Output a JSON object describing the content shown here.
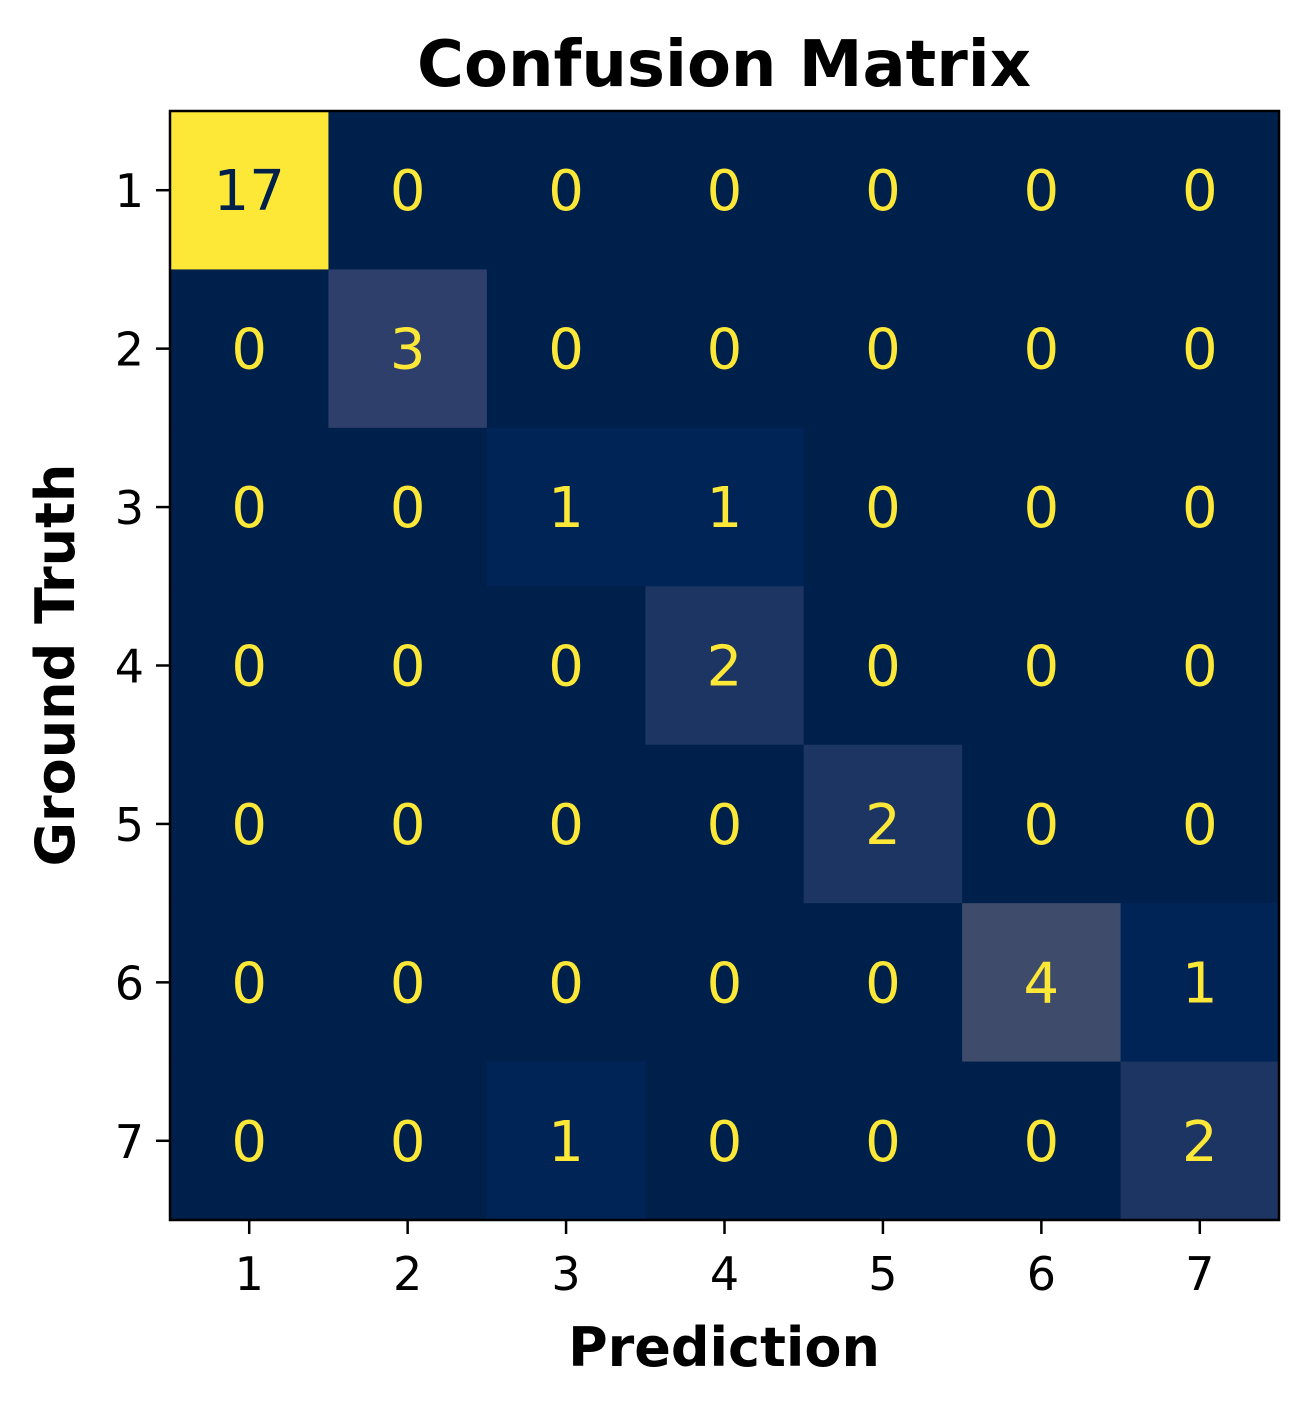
{
  "chart_data": {
    "type": "heatmap",
    "title": "Confusion Matrix",
    "xlabel": "Prediction",
    "ylabel": "Ground Truth",
    "x_categories": [
      "1",
      "2",
      "3",
      "4",
      "5",
      "6",
      "7"
    ],
    "y_categories": [
      "1",
      "2",
      "3",
      "4",
      "5",
      "6",
      "7"
    ],
    "values": [
      [
        17,
        0,
        0,
        0,
        0,
        0,
        0
      ],
      [
        0,
        3,
        0,
        0,
        0,
        0,
        0
      ],
      [
        0,
        0,
        1,
        1,
        0,
        0,
        0
      ],
      [
        0,
        0,
        0,
        2,
        0,
        0,
        0
      ],
      [
        0,
        0,
        0,
        0,
        2,
        0,
        0
      ],
      [
        0,
        0,
        0,
        0,
        0,
        4,
        1
      ],
      [
        0,
        0,
        1,
        0,
        0,
        0,
        2
      ]
    ],
    "colormap": "cividis",
    "value_range": [
      0,
      17
    ],
    "grid": false,
    "colors": {
      "low": "#00204c",
      "high": "#fde737",
      "text_on_dark": "#fde737",
      "text_on_light": "#00204c"
    }
  }
}
